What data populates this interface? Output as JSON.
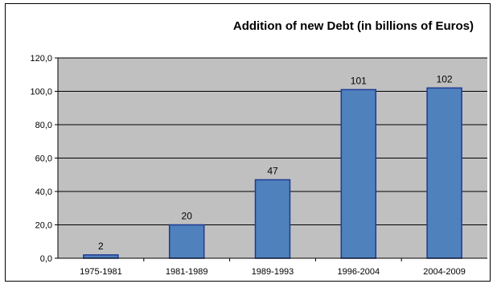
{
  "chart_data": {
    "type": "bar",
    "title": "Addition of new Debt (in billions of Euros)",
    "categories": [
      "1975-1981",
      "1981-1989",
      "1989-1993",
      "1996-2004",
      "2004-2009"
    ],
    "values": [
      2,
      20,
      47,
      101,
      102
    ],
    "data_labels": [
      "2",
      "20",
      "47",
      "101",
      "102"
    ],
    "ylim": [
      0,
      120
    ],
    "yticks": [
      "0,0",
      "20,0",
      "40,0",
      "60,0",
      "80,0",
      "100,0",
      "120,0"
    ],
    "xlabel": "",
    "ylabel": "",
    "grid": true,
    "legend": "none",
    "colors": {
      "bar_fill": "#4F81BD",
      "bar_stroke": "#1F3A93",
      "plot_bg": "#C0C0C0",
      "gridline": "#000000"
    }
  }
}
